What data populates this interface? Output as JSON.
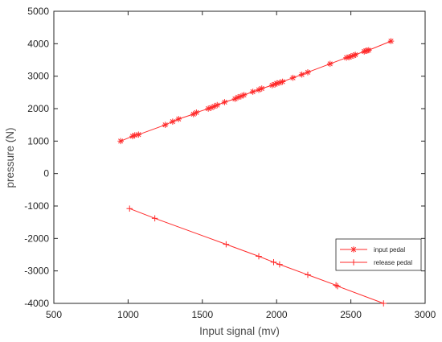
{
  "chart_data": {
    "type": "line",
    "xlabel": "Input signal (mv)",
    "ylabel": "pressure (N)",
    "xlim": [
      500,
      3000
    ],
    "ylim": [
      -4000,
      5000
    ],
    "xticks": [
      500,
      1000,
      1500,
      2000,
      2500,
      3000
    ],
    "yticks": [
      -4000,
      -3000,
      -2000,
      -1000,
      0,
      1000,
      2000,
      3000,
      4000,
      5000
    ],
    "grid": false,
    "legend_position": "lower-right",
    "series": [
      {
        "name": "input pedal",
        "marker": "asterisk",
        "color": "#ff2a2a",
        "x": [
          950,
          1030,
          1045,
          1070,
          1250,
          1300,
          1340,
          1440,
          1460,
          1540,
          1560,
          1580,
          1600,
          1650,
          1720,
          1740,
          1760,
          1780,
          1840,
          1880,
          1900,
          1970,
          1990,
          2000,
          2020,
          2040,
          2110,
          2170,
          2210,
          2360,
          2470,
          2490,
          2500,
          2520,
          2530,
          2590,
          2600,
          2610,
          2620,
          2770
        ],
        "y": [
          1000,
          1150,
          1180,
          1200,
          1500,
          1600,
          1680,
          1830,
          1880,
          2000,
          2030,
          2070,
          2110,
          2200,
          2300,
          2350,
          2380,
          2420,
          2520,
          2580,
          2620,
          2720,
          2750,
          2780,
          2800,
          2830,
          2950,
          3050,
          3120,
          3380,
          3570,
          3590,
          3610,
          3640,
          3660,
          3760,
          3780,
          3790,
          3800,
          4080
        ]
      },
      {
        "name": "release pedal",
        "marker": "plus",
        "color": "#ff2a2a",
        "x": [
          1010,
          1180,
          1660,
          1880,
          1980,
          2020,
          2210,
          2400,
          2410,
          2720
        ],
        "y": [
          -1080,
          -1380,
          -2180,
          -2550,
          -2730,
          -2800,
          -3120,
          -3440,
          -3470,
          -4000
        ]
      }
    ]
  }
}
